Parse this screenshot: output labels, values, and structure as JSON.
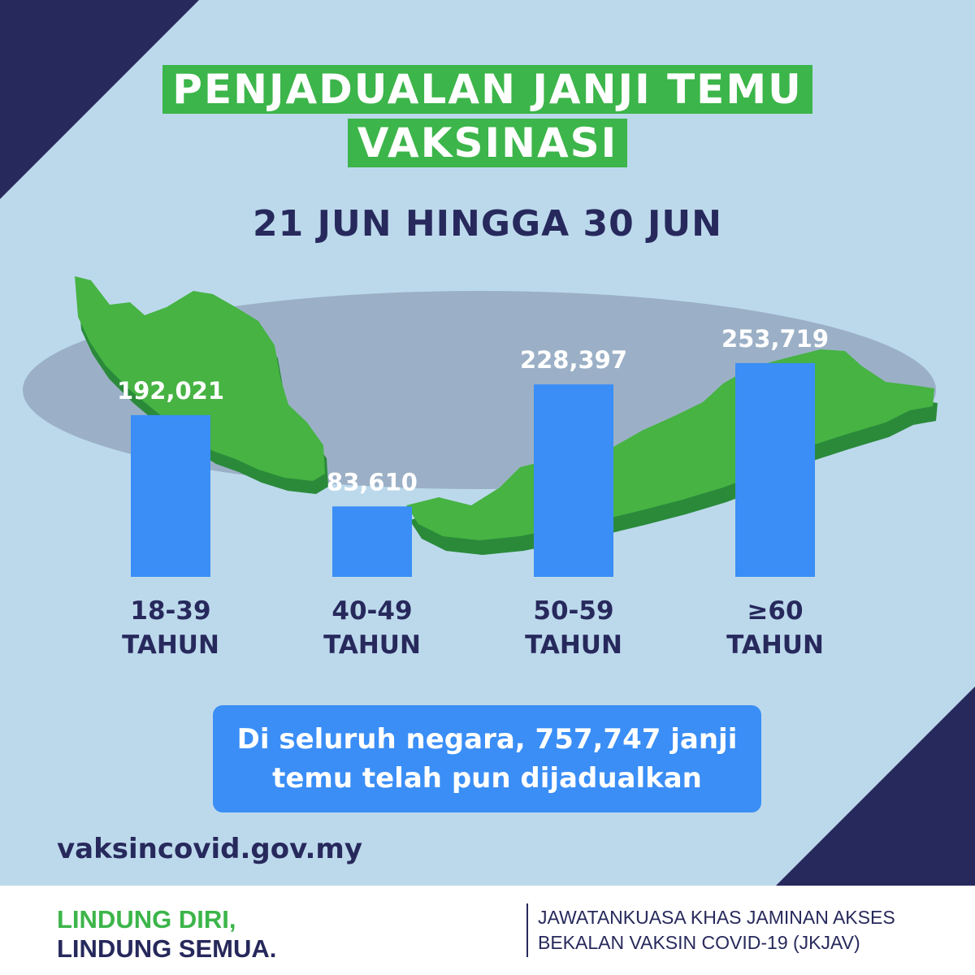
{
  "header": {
    "title_line1": "PENJADUALAN JANJI TEMU",
    "title_line2": "VAKSINASI",
    "subtitle": "21 JUN HINGGA 30 JUN"
  },
  "chart_data": {
    "type": "bar",
    "categories": [
      "18-39 TAHUN",
      "40-49 TAHUN",
      "50-59 TAHUN",
      "≥60 TAHUN"
    ],
    "category_lines": [
      [
        "18-39",
        "TAHUN"
      ],
      [
        "40-49",
        "TAHUN"
      ],
      [
        "50-59",
        "TAHUN"
      ],
      [
        "≥60",
        "TAHUN"
      ]
    ],
    "values": [
      192021,
      83610,
      228397,
      253719
    ],
    "value_labels": [
      "192,021",
      "83,610",
      "228,397",
      "253,719"
    ],
    "ylim": [
      0,
      270000
    ],
    "grid": false
  },
  "summary": {
    "line1": "Di seluruh negara, 757,747 janji",
    "line2": "temu telah pun dijadualkan"
  },
  "website": "vaksincovid.gov.my",
  "footer": {
    "slogan_line1": "LINDUNG DIRI,",
    "slogan_line2": "LINDUNG SEMUA.",
    "org_line1": "JAWATANKUASA KHAS JAMINAN AKSES",
    "org_line2": "BEKALAN VAKSIN COVID-19 (JKJAV)"
  },
  "colors": {
    "background": "#bcd9ec",
    "navy": "#27295c",
    "green": "#3cb54a",
    "bar": "#3a8ef6",
    "map_green": "#46b343",
    "ellipse": "#9bb0c6"
  }
}
